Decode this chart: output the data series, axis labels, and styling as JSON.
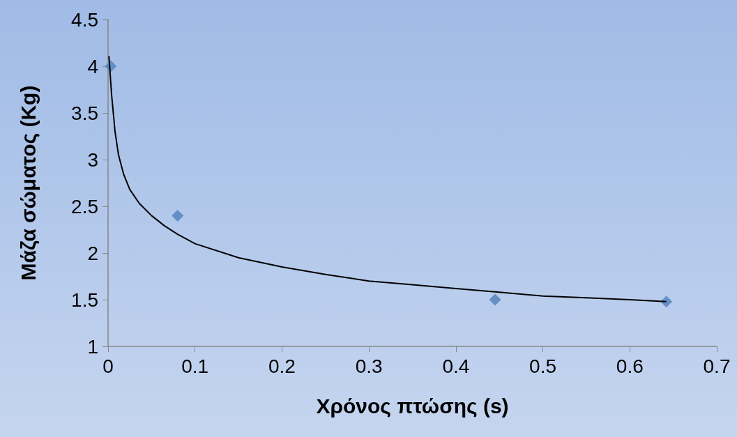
{
  "chart_data": {
    "type": "scatter",
    "xlabel": "Χρόνος πτώσης (s)",
    "ylabel": "Μάζα σώματος (Kg)",
    "xlim": [
      0,
      0.7
    ],
    "xticks": [
      0,
      0.1,
      0.2,
      0.3,
      0.4,
      0.5,
      0.6,
      0.7
    ],
    "ylim": [
      1,
      4.5
    ],
    "yticks": [
      1,
      1.5,
      2,
      2.5,
      3,
      3.5,
      4,
      4.5
    ],
    "grid": false,
    "series": [
      {
        "marker": "diamond",
        "color": "#4f81bd",
        "x": [
          0.003,
          0.08,
          0.445,
          0.642
        ],
        "values": [
          4.0,
          2.4,
          1.5,
          1.48
        ]
      },
      {
        "type": "line",
        "marker": "none",
        "line_style": "solid",
        "color": "#000000",
        "x": [
          0.001,
          0.004,
          0.008,
          0.012,
          0.018,
          0.025,
          0.036,
          0.05,
          0.065,
          0.08,
          0.1,
          0.15,
          0.2,
          0.25,
          0.3,
          0.35,
          0.4,
          0.45,
          0.5,
          0.55,
          0.6,
          0.642
        ],
        "values": [
          4.11,
          3.7,
          3.3,
          3.05,
          2.84,
          2.68,
          2.53,
          2.4,
          2.29,
          2.2,
          2.1,
          1.95,
          1.85,
          1.77,
          1.7,
          1.66,
          1.62,
          1.58,
          1.54,
          1.52,
          1.5,
          1.48
        ]
      }
    ]
  }
}
